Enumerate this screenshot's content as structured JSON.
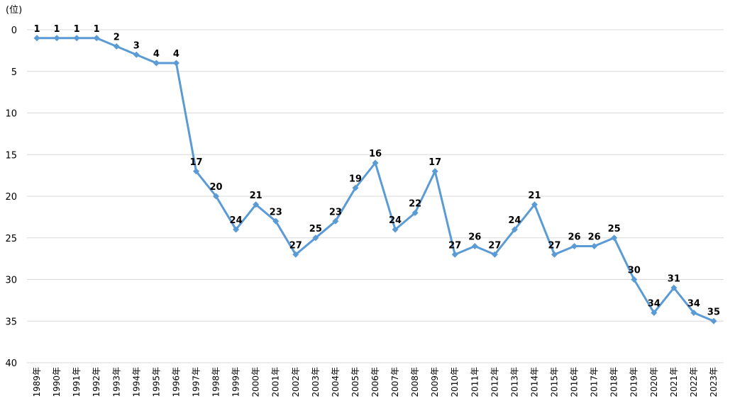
{
  "chart_data": {
    "type": "line",
    "title": "",
    "ylabel": "(位)",
    "xlabel": "",
    "ylim": [
      0,
      40
    ],
    "y_inverted": true,
    "y_ticks": [
      0,
      5,
      10,
      15,
      20,
      25,
      30,
      35,
      40
    ],
    "grid": "horizontal",
    "legend": "none",
    "colors": {
      "series": "#5B9BD5",
      "grid": "#D9D9D9"
    },
    "x": [
      "1989年",
      "1990年",
      "1991年",
      "1992年",
      "1993年",
      "1994年",
      "1995年",
      "1996年",
      "1997年",
      "1998年",
      "1999年",
      "2000年",
      "2001年",
      "2002年",
      "2003年",
      "2004年",
      "2005年",
      "2006年",
      "2007年",
      "2008年",
      "2009年",
      "2010年",
      "2011年",
      "2012年",
      "2013年",
      "2014年",
      "2015年",
      "2016年",
      "2017年",
      "2018年",
      "2019年",
      "2020年",
      "2021年",
      "2022年",
      "2023年"
    ],
    "series": [
      {
        "values": [
          1,
          1,
          1,
          1,
          2,
          3,
          4,
          4,
          17,
          20,
          24,
          21,
          23,
          27,
          25,
          23,
          19,
          16,
          24,
          22,
          17,
          27,
          26,
          27,
          24,
          21,
          27,
          26,
          26,
          25,
          30,
          34,
          31,
          34,
          35
        ]
      }
    ]
  }
}
